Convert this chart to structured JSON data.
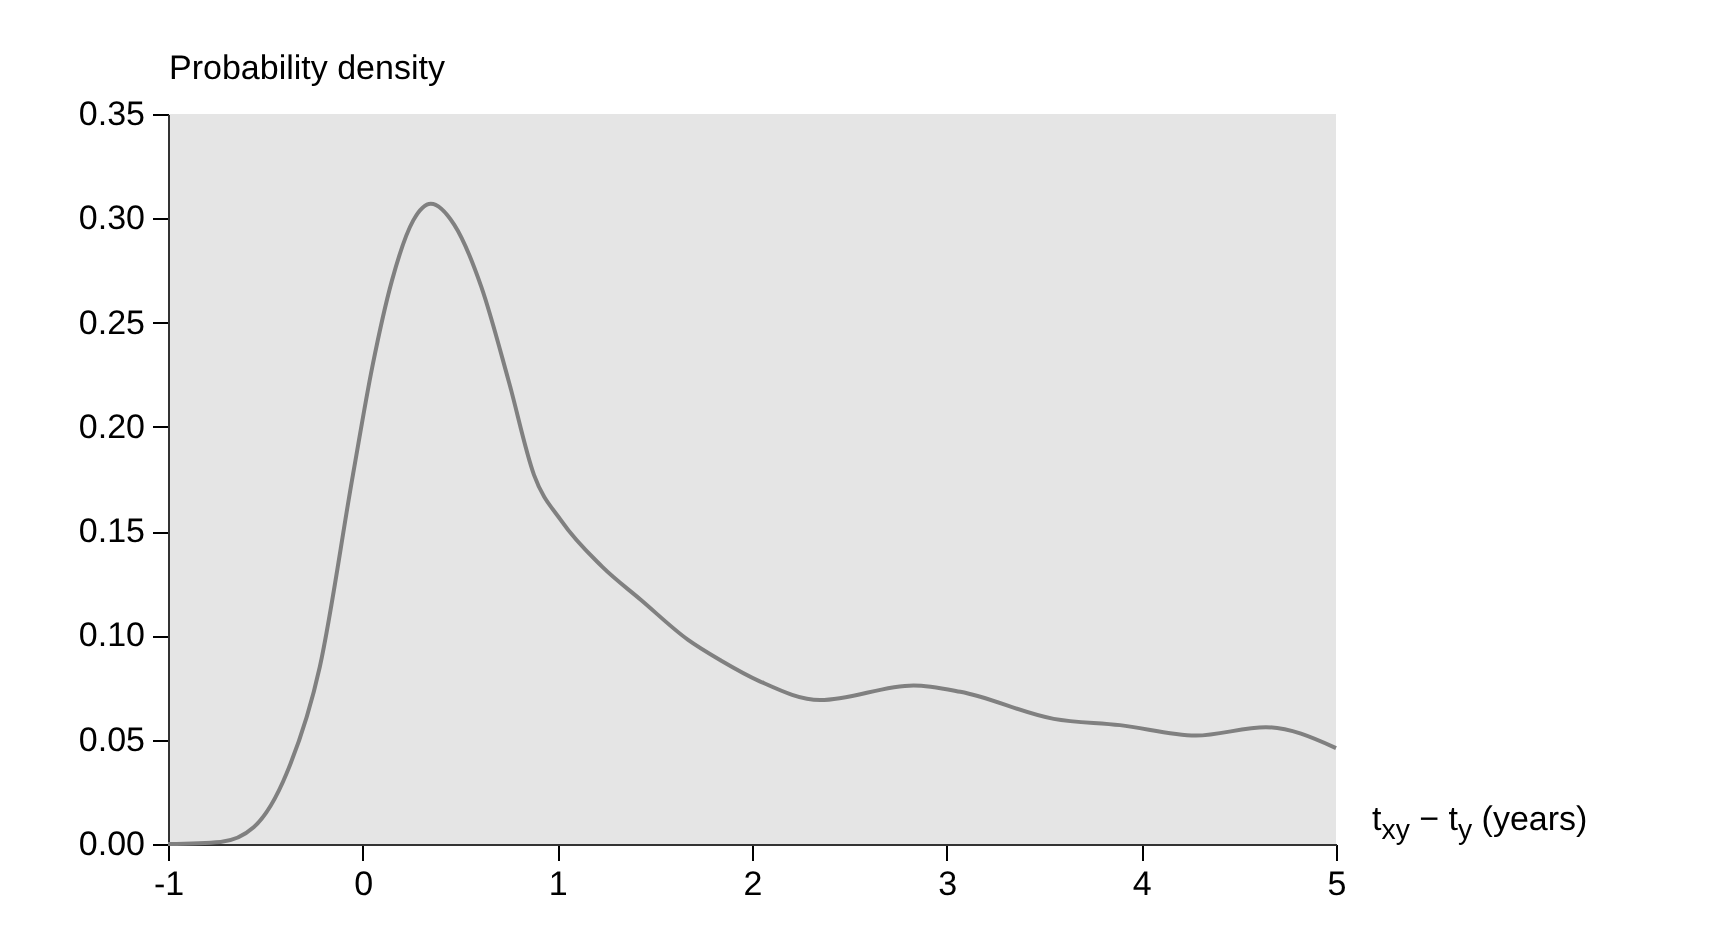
{
  "chart_data": {
    "type": "line",
    "xlabel": "t$_{xy}$ − t$_{y}$ (years)",
    "ylabel": "Probability density",
    "x": [
      -1,
      -0.73,
      -0.56,
      -0.39,
      -0.22,
      -0.05,
      0.05,
      0.15,
      0.26,
      0.35,
      0.47,
      0.61,
      0.75,
      0.88,
      1.02,
      1.23,
      1.43,
      1.67,
      1.84,
      2.04,
      2.35,
      2.83,
      3.07,
      3.55,
      3.89,
      4.28,
      4.64,
      5
    ],
    "series": [
      {
        "color": "#808080",
        "values": [
          0,
          0.001,
          0.008,
          0.034,
          0.085,
          0.177,
          0.229,
          0.27,
          0.299,
          0.307,
          0.297,
          0.267,
          0.222,
          0.177,
          0.155,
          0.133,
          0.117,
          0.098,
          0.088,
          0.078,
          0.069,
          0.076,
          0.073,
          0.06,
          0.057,
          0.052,
          0.056,
          0.046
        ]
      }
    ],
    "xlim": [
      -1,
      5
    ],
    "xticks": [
      -1,
      0,
      1,
      2,
      3,
      4,
      5
    ],
    "ylim": [
      0,
      0.35
    ],
    "yticks": [
      {
        "value": 0,
        "label": "0.00"
      },
      {
        "value": 0.05,
        "label": "0.05"
      },
      {
        "value": 0.1,
        "label": "0.10"
      },
      {
        "value": 0.15,
        "label": "0.15"
      },
      {
        "value": 0.2,
        "label": "0.20"
      },
      {
        "value": 0.25,
        "label": "0.25"
      },
      {
        "value": 0.3,
        "label": "0.30"
      },
      {
        "value": 0.35,
        "label": "0.35"
      }
    ]
  }
}
